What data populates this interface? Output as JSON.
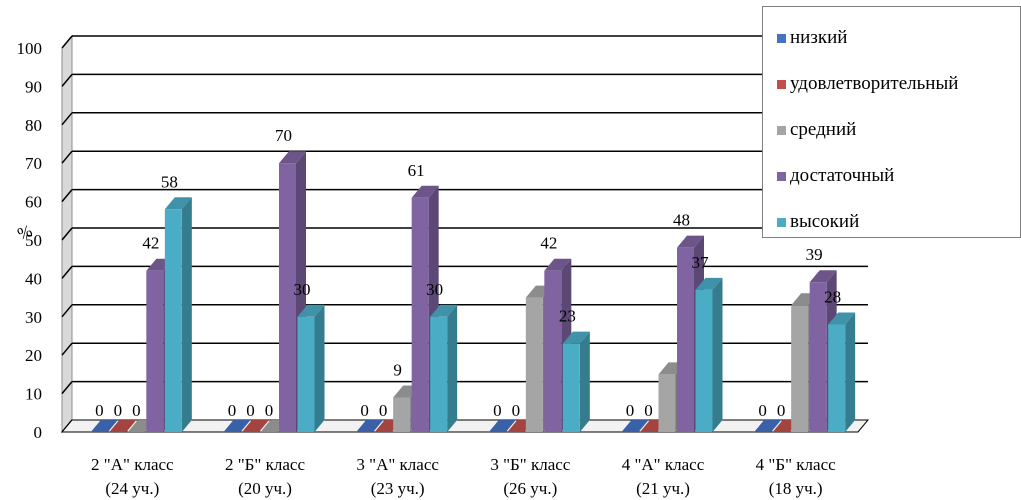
{
  "chart_data": {
    "type": "bar",
    "title": "",
    "ylabel": "%",
    "xlabel": "",
    "ylim": [
      0,
      100
    ],
    "yticks": [
      0,
      10,
      20,
      30,
      40,
      50,
      60,
      70,
      80,
      90,
      100
    ],
    "grid": true,
    "legend_position": "top-right",
    "categories": [
      {
        "line1": "2 \"А\" класс",
        "line2": "(24 уч.)"
      },
      {
        "line1": "2 \"Б\" класс",
        "line2": "(20 уч.)"
      },
      {
        "line1": "3 \"А\" класс",
        "line2": "(23 уч.)"
      },
      {
        "line1": "3 \"Б\" класс",
        "line2": "(26 уч.)"
      },
      {
        "line1": "4 \"А\" класс",
        "line2": "(21 уч.)"
      },
      {
        "line1": "4 \"Б\" класс",
        "line2": "(18 уч.)"
      }
    ],
    "series": [
      {
        "name": "низкий",
        "color": "#4472c4",
        "values": [
          0,
          0,
          0,
          0,
          0,
          0
        ],
        "labels": [
          "0",
          "0",
          "0",
          "0",
          "0",
          "0"
        ]
      },
      {
        "name": "удовлетворительный",
        "color": "#c0504d",
        "values": [
          0,
          0,
          0,
          0,
          0,
          0
        ],
        "labels": [
          "0",
          "0",
          "0",
          "0",
          "0",
          "0"
        ]
      },
      {
        "name": "средний",
        "color": "#a5a5a5",
        "values": [
          0,
          0,
          9,
          35,
          15,
          33
        ],
        "labels": [
          "0",
          "0",
          "9",
          "35",
          "15",
          "33"
        ]
      },
      {
        "name": "достаточный",
        "color": "#8064a2",
        "values": [
          42,
          70,
          61,
          42,
          48,
          39
        ],
        "labels": [
          "42",
          "70",
          "61",
          "42",
          "48",
          "39"
        ]
      },
      {
        "name": "высокий",
        "color": "#4bacc6",
        "values": [
          58,
          30,
          30,
          23,
          37,
          28
        ],
        "labels": [
          "58",
          "30",
          "30",
          "23",
          "37",
          "28"
        ]
      }
    ],
    "label_hidden": [
      [
        false,
        false,
        false,
        false,
        false,
        false
      ],
      [
        false,
        false,
        false,
        false,
        false,
        false
      ],
      [
        false,
        false,
        false,
        true,
        true,
        true
      ],
      [
        false,
        false,
        false,
        false,
        false,
        false
      ],
      [
        false,
        false,
        false,
        false,
        false,
        false
      ]
    ]
  }
}
